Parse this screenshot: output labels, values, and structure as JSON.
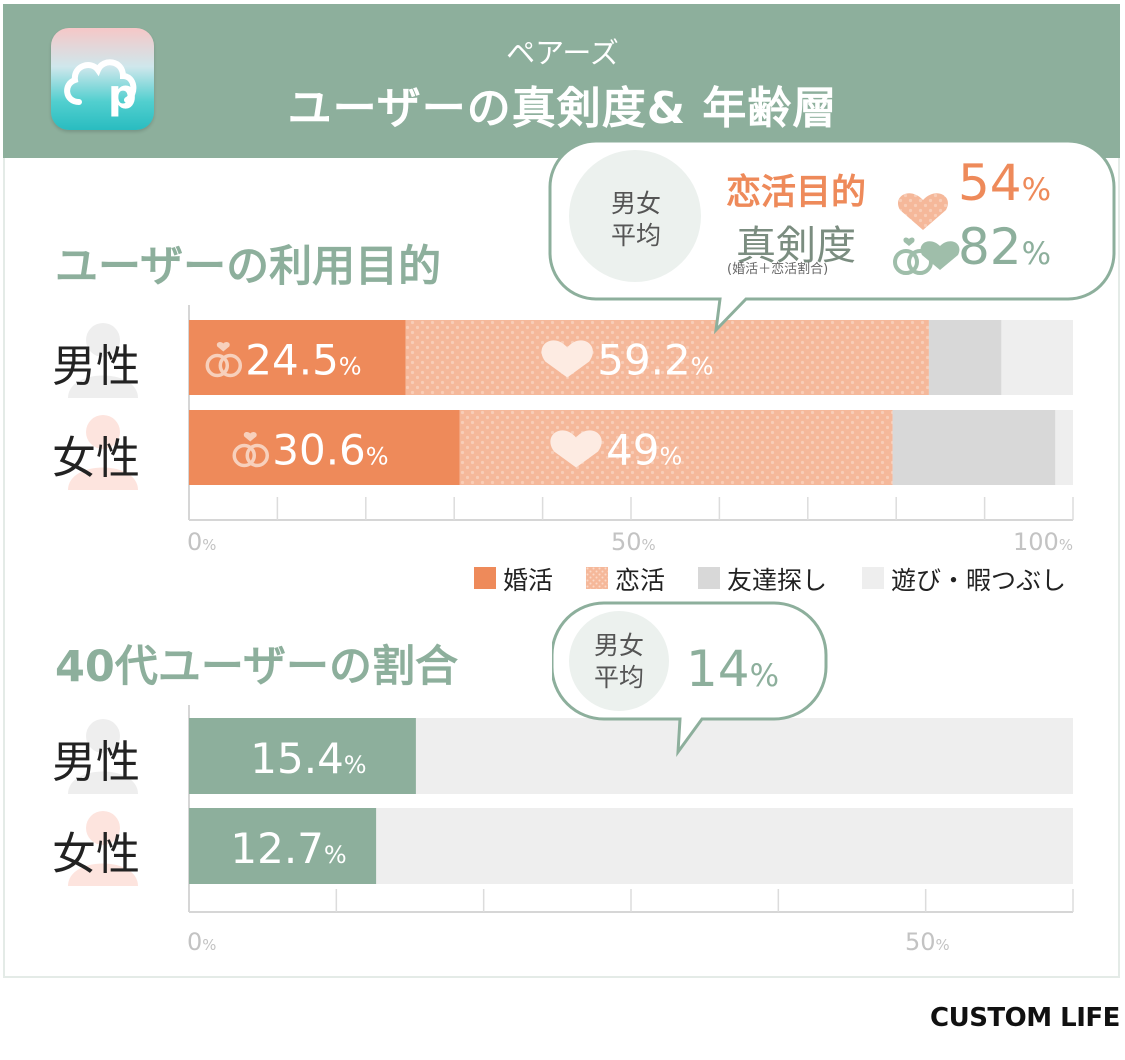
{
  "header": {
    "subtitle": "ペアーズ",
    "title": "ユーザーの真剣度& 年齢層"
  },
  "app_icon": {
    "name": "pairs-app-icon",
    "letter": "p"
  },
  "purpose_section": {
    "title": "ユーザーの利用目的",
    "rows": [
      {
        "label": "男性",
        "konkatsu": "24.5",
        "renkatsu": "59.2"
      },
      {
        "label": "女性",
        "konkatsu": "30.6",
        "renkatsu": "49"
      }
    ],
    "percent_sign": "%",
    "axis_ticks": [
      "0",
      "50",
      "100"
    ],
    "legend": [
      "婚活",
      "恋活",
      "友達探し",
      "遊び・暇つぶし"
    ],
    "callout": {
      "badge_line1": "男女",
      "badge_line2": "平均",
      "renkatsu_label": "恋活目的",
      "renkatsu_value": "54",
      "seriousness_label": "真剣度",
      "seriousness_note": "(婚活＋恋活割合)",
      "seriousness_value": "82"
    }
  },
  "age_section": {
    "title": "40代ユーザーの割合",
    "rows": [
      {
        "label": "男性",
        "value": "15.4"
      },
      {
        "label": "女性",
        "value": "12.7"
      }
    ],
    "axis_ticks": [
      "0",
      "50"
    ],
    "callout": {
      "badge_line1": "男女",
      "badge_line2": "平均",
      "value": "14"
    }
  },
  "brand": "CUSTOM LIFE",
  "colors": {
    "header_green": "#8daf9c",
    "konkatsu": "#ee8a5a",
    "renkatsu": "#f5b89a",
    "friends": "#d8d8d8",
    "play": "#eeeeee",
    "age_bar": "#8daf9c",
    "track": "#eeeeee"
  },
  "chart_data": [
    {
      "type": "bar",
      "stacked": true,
      "orientation": "horizontal",
      "title": "ユーザーの利用目的",
      "categories": [
        "男性",
        "女性"
      ],
      "series": [
        {
          "name": "婚活",
          "values": [
            24.5,
            30.6
          ]
        },
        {
          "name": "恋活",
          "values": [
            59.2,
            49
          ]
        },
        {
          "name": "友達探し",
          "values": [
            8.2,
            18.4
          ]
        },
        {
          "name": "遊び・暇つぶし",
          "values": [
            8.1,
            2.0
          ]
        }
      ],
      "xlim": [
        0,
        100
      ],
      "xticks": [
        0,
        50,
        100
      ],
      "grid": true,
      "legend_position": "bottom-right",
      "annotations": [
        {
          "text": "恋活目的",
          "value": 54
        },
        {
          "text": "真剣度",
          "value": 82
        }
      ]
    },
    {
      "type": "bar",
      "orientation": "horizontal",
      "title": "40代ユーザーの割合",
      "categories": [
        "男性",
        "女性"
      ],
      "values": [
        15.4,
        12.7
      ],
      "xlim": [
        0,
        60
      ],
      "xticks": [
        0,
        50
      ],
      "grid": true,
      "annotations": [
        {
          "text": "男女平均",
          "value": 14
        }
      ]
    }
  ]
}
